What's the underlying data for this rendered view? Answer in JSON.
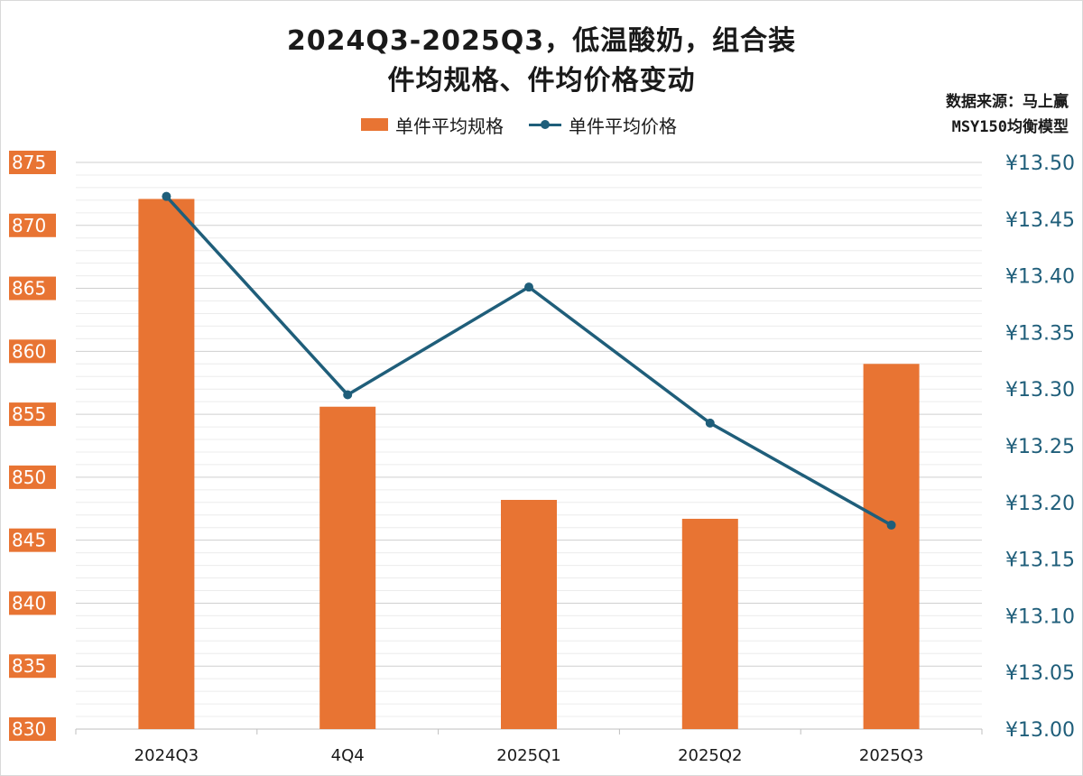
{
  "colors": {
    "bar": "#E87433",
    "line": "#1F5E7A",
    "grid": "#d9d9d9"
  },
  "title_line1": "2024Q3-2025Q3，低温酸奶，组合装",
  "title_line2": "件均规格、件均价格变动",
  "source_line1": "数据来源：马上赢",
  "source_line2": "MSY150均衡模型",
  "chart_data": {
    "type": "bar",
    "title": "2024Q3-2025Q3，低温酸奶，组合装 件均规格、件均价格变动",
    "categories": [
      "2024Q3",
      "2024Q4",
      "2025Q1",
      "2025Q2",
      "2025Q3"
    ],
    "category_labels": [
      "2024Q3",
      "4Q4",
      "2025Q1",
      "2025Q2",
      "2025Q3"
    ],
    "series": [
      {
        "name": "单件平均规格",
        "type": "bar",
        "axis": "left",
        "values": [
          872.1,
          855.6,
          848.2,
          846.7,
          859.0
        ]
      },
      {
        "name": "单件平均价格",
        "type": "line",
        "axis": "right",
        "values": [
          13.47,
          13.295,
          13.39,
          13.27,
          13.18
        ]
      }
    ],
    "left_axis": {
      "ylim": [
        830,
        875
      ],
      "ticks": [
        "875",
        "870",
        "865",
        "860",
        "855",
        "850",
        "845",
        "840",
        "835",
        "830"
      ]
    },
    "right_axis": {
      "ylim": [
        13.0,
        13.5
      ],
      "ticks": [
        "¥13.50",
        "¥13.45",
        "¥13.40",
        "¥13.35",
        "¥13.30",
        "¥13.25",
        "¥13.20",
        "¥13.15",
        "¥13.10",
        "¥13.05",
        "¥13.00"
      ]
    },
    "grid": true,
    "legend": "top"
  }
}
